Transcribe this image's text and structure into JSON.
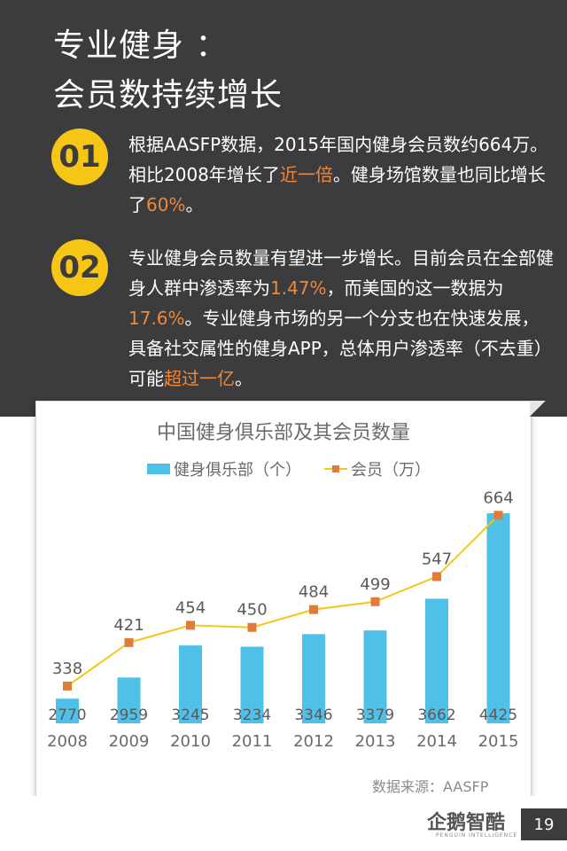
{
  "header": {
    "title_line1": "专业健身 ：",
    "title_line2": "会员数持续增长"
  },
  "points": [
    {
      "number": "01",
      "parts": [
        {
          "text": "根据AASFP数据，2015年国内健身会员数约664万。相比2008年增长了",
          "hl": false
        },
        {
          "text": "近一倍",
          "hl": true
        },
        {
          "text": "。健身场馆数量也同比增长了",
          "hl": false
        },
        {
          "text": "60%",
          "hl": true
        },
        {
          "text": "。",
          "hl": false
        }
      ]
    },
    {
      "number": "02",
      "parts": [
        {
          "text": "专业健身会员数量有望进一步增长。目前会员在全部健身人群中渗透率为",
          "hl": false
        },
        {
          "text": "1.47%",
          "hl": true
        },
        {
          "text": "，而美国的这一数据为",
          "hl": false
        },
        {
          "text": "17.6%",
          "hl": true
        },
        {
          "text": "。专业健身市场的另一个分支也在快速发展，具备社交属性的健身APP，总体用户渗透率（不去重）可能",
          "hl": false
        },
        {
          "text": "超过一亿",
          "hl": true
        },
        {
          "text": "。",
          "hl": false
        }
      ]
    }
  ],
  "chart_data": {
    "type": "bar",
    "title": "中国健身俱乐部及其会员数量",
    "categories": [
      "2008",
      "2009",
      "2010",
      "2011",
      "2012",
      "2013",
      "2014",
      "2015"
    ],
    "series": [
      {
        "name": "健身俱乐部（个）",
        "kind": "bar",
        "color": "#4fc0e8",
        "values": [
          2770,
          2959,
          3245,
          3234,
          3346,
          3379,
          3662,
          4425
        ]
      },
      {
        "name": "会员（万）",
        "kind": "line",
        "color": "#f5c518",
        "marker_color": "#e07b39",
        "values": [
          338,
          421,
          454,
          450,
          484,
          499,
          547,
          664
        ]
      }
    ],
    "legend_position": "top",
    "grid": false
  },
  "source": "数据来源：AASFP",
  "footer": {
    "logo": "企鹅智酷",
    "logo_sub": "PENGUIN INTELLIGENCE",
    "page_number": "19"
  }
}
